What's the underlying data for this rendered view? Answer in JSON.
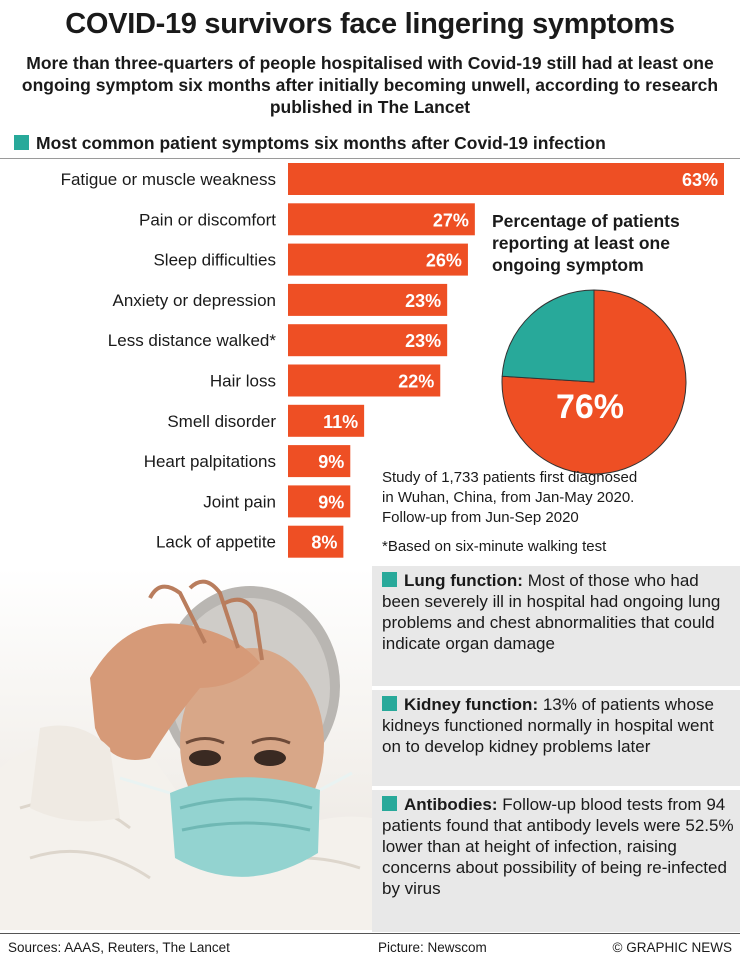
{
  "title": "COVID-19 survivors face lingering symptoms",
  "subtitle": "More than three-quarters of people hospitalised with Covid-19 still had at least one ongoing symptom six months after initially becoming unwell, according to research published in The Lancet",
  "colors": {
    "bar": "#ee4f24",
    "teal": "#28a99a",
    "note_bg": "#e8e8e8"
  },
  "chart_data": [
    {
      "type": "bar",
      "orientation": "horizontal",
      "title": "Most common patient symptoms six months after Covid-19 infection",
      "categories": [
        "Fatigue or muscle weakness",
        "Pain or discomfort",
        "Sleep difficulties",
        "Anxiety or depression",
        "Less distance walked*",
        "Hair loss",
        "Smell disorder",
        "Heart palpitations",
        "Joint pain",
        "Lack of appetite"
      ],
      "values": [
        63,
        27,
        26,
        23,
        23,
        22,
        11,
        9,
        9,
        8
      ],
      "value_labels": [
        "63%",
        "27%",
        "26%",
        "23%",
        "23%",
        "22%",
        "11%",
        "9%",
        "9%",
        "8%"
      ],
      "unit": "%"
    },
    {
      "type": "pie",
      "title": "Percentage of patients reporting at least one ongoing symptom",
      "values": [
        76,
        24
      ],
      "label": "76%"
    }
  ],
  "study_text": [
    "Study of 1,733 patients first diagnosed",
    "in Wuhan, China, from Jan-May 2020.",
    "Follow-up from Jun-Sep 2020"
  ],
  "footnote": "*Based on six-minute walking test",
  "notes": [
    {
      "heading": "Lung function:",
      "text": "Most of those who had been severely ill in hospital had ongoing lung problems and chest abnormalities that could indicate organ damage"
    },
    {
      "heading": "Kidney function:",
      "text": "13% of patients whose kidneys functioned normally in hospital went on to develop kidney problems later"
    },
    {
      "heading": "Antibodies:",
      "text": "Follow-up blood tests from 94 patients found that antibody levels were 52.5% lower than at height of infection, raising concerns about possibility of being re-infected by virus"
    }
  ],
  "footer": {
    "sources": "Sources: AAAS, Reuters, The Lancet",
    "picture": "Picture: Newscom",
    "credit": "© GRAPHIC NEWS"
  }
}
